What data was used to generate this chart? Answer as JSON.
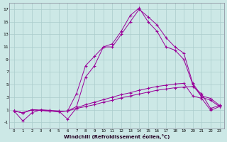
{
  "xlabel": "Windchill (Refroidissement éolien,°C)",
  "xlim": [
    -0.5,
    23.5
  ],
  "ylim": [
    -2.0,
    18.0
  ],
  "yticks": [
    -1,
    1,
    3,
    5,
    7,
    9,
    11,
    13,
    15,
    17
  ],
  "xticks": [
    0,
    1,
    2,
    3,
    4,
    5,
    6,
    7,
    8,
    9,
    10,
    11,
    12,
    13,
    14,
    15,
    16,
    17,
    18,
    19,
    20,
    21,
    22,
    23
  ],
  "bg_color": "#cce8e6",
  "grid_color": "#aacccc",
  "line_color": "#990099",
  "series": [
    [
      0.8,
      -0.8,
      0.5,
      1.0,
      0.9,
      0.8,
      -0.5,
      1.3,
      1.8,
      2.2,
      2.6,
      3.0,
      3.4,
      3.7,
      4.1,
      4.4,
      4.7,
      4.9,
      5.1,
      5.2,
      3.2,
      2.8,
      0.9,
      1.5
    ],
    [
      0.8,
      0.5,
      1.0,
      0.9,
      0.8,
      0.7,
      0.8,
      1.5,
      6.2,
      8.0,
      11.0,
      11.5,
      13.5,
      16.0,
      17.2,
      15.0,
      13.5,
      11.0,
      10.5,
      9.0,
      5.0,
      3.0,
      2.5,
      1.5
    ],
    [
      0.8,
      0.5,
      1.0,
      0.9,
      0.8,
      0.7,
      0.8,
      3.6,
      8.0,
      9.5,
      11.0,
      11.0,
      13.0,
      15.0,
      17.0,
      15.8,
      14.5,
      12.5,
      11.0,
      10.0,
      5.2,
      3.2,
      2.8,
      1.7
    ],
    [
      0.8,
      0.5,
      1.0,
      0.9,
      0.8,
      0.7,
      0.8,
      1.2,
      1.5,
      1.8,
      2.2,
      2.5,
      2.9,
      3.2,
      3.5,
      3.8,
      4.1,
      4.3,
      4.5,
      4.6,
      4.7,
      3.5,
      1.2,
      1.7
    ]
  ]
}
